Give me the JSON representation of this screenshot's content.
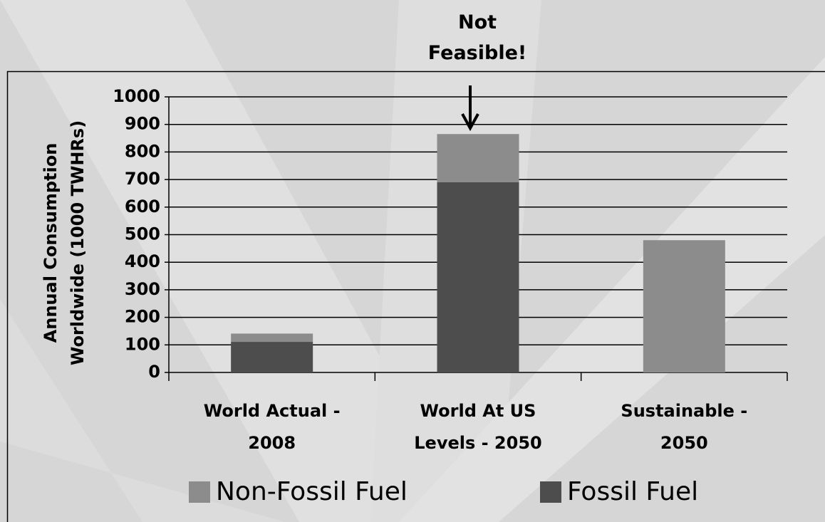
{
  "chart_data": {
    "type": "stacked_bar",
    "annotation": "Not Feasible!",
    "y_label": "Annual Consumption Worldwide (1000 TWHRs)",
    "categories": [
      "World Actual - 2008",
      "World At US Levels - 2050",
      "Sustainable - 2050"
    ],
    "series": [
      {
        "name": "Non-Fossil Fuel",
        "color": "#8c8c8c",
        "values": [
          30,
          175,
          480
        ]
      },
      {
        "name": "Fossil Fuel",
        "color": "#4d4d4d",
        "values": [
          111,
          690,
          0
        ]
      }
    ],
    "ylim": [
      0,
      1000
    ],
    "yticks": [
      0,
      100,
      200,
      300,
      400,
      500,
      600,
      700,
      800,
      900,
      1000
    ],
    "grid": true,
    "legend": "bottom"
  }
}
